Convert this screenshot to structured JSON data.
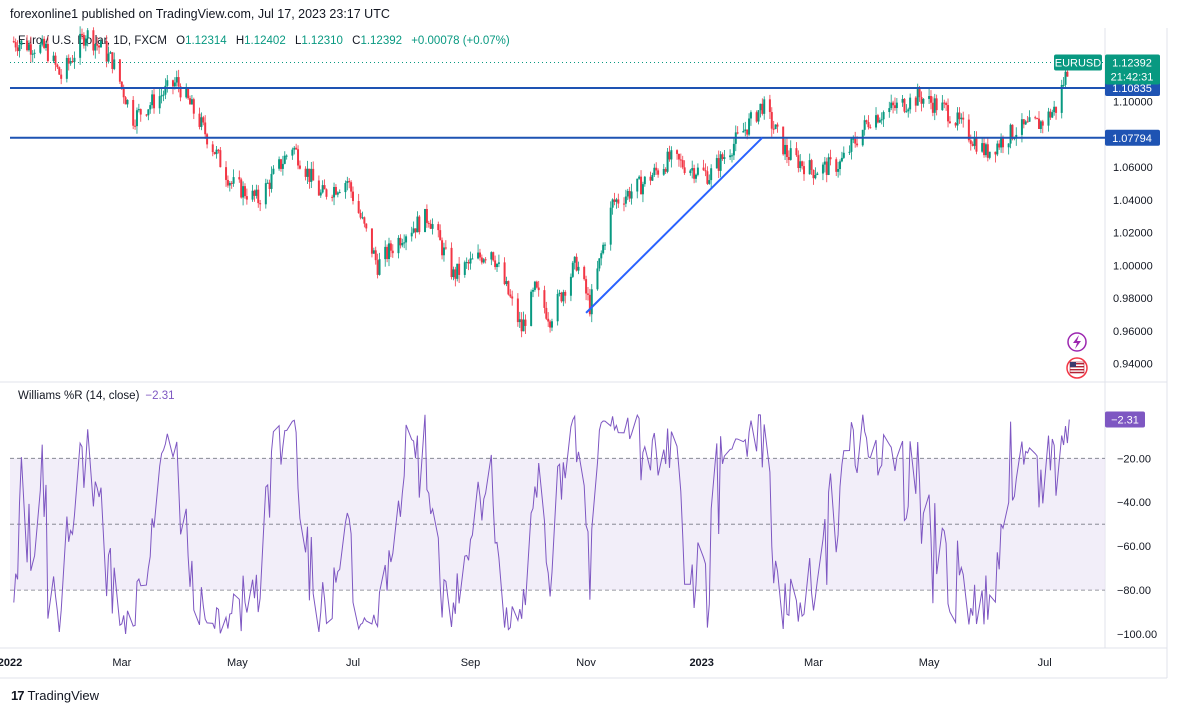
{
  "header": {
    "publisher": "forexonline1 published on TradingView.com, Jul 17, 2023 23:17 UTC"
  },
  "legend": {
    "symbol": "Euro / U.S. Dollar, 1D, FXCM",
    "o_label": "O",
    "o_value": "1.12314",
    "h_label": "H",
    "h_value": "1.12402",
    "l_label": "L",
    "l_value": "1.12310",
    "c_label": "C",
    "c_value": "1.12392",
    "change": "+0.00078 (+0.07%)"
  },
  "indicator": {
    "name": "Williams %R (14, close)",
    "value": "−2.31"
  },
  "footer": {
    "brand": "TradingView",
    "logo_text": "17"
  },
  "colors": {
    "up": "#089981",
    "down": "#f23645",
    "line": "#2962ff",
    "hline": "#1e53b3",
    "indicator": "#7e57c2",
    "band": "#ede7f6"
  },
  "icons": [
    "lightning-icon",
    "us-flag-icon"
  ],
  "chart_data": [
    {
      "type": "candlestick",
      "symbol": "EURUSD",
      "ylim": [
        0.93,
        1.145
      ],
      "y_ticks": [
        "0.94000",
        "0.96000",
        "0.98000",
        "1.00000",
        "1.02000",
        "1.04000",
        "1.06000",
        "1.10000"
      ],
      "x_labels": [
        "2022",
        "Mar",
        "May",
        "Jul",
        "Sep",
        "Nov",
        "2023",
        "Mar",
        "May",
        "Jul"
      ],
      "price_badge": {
        "label": "EURUSD",
        "value": "1.12392",
        "countdown": "21:42:31"
      },
      "horizontal_lines": [
        {
          "value": 1.10835,
          "label": "1.10835"
        },
        {
          "value": 1.07794,
          "label": "1.07794"
        }
      ],
      "trendline": {
        "from": {
          "date": "2022-11-01",
          "value": 0.971
        },
        "to": {
          "date": "2023-02-02",
          "value": 1.078
        }
      },
      "close_path": [
        {
          "date": "2022-01-01",
          "value": 1.137
        },
        {
          "date": "2022-01-20",
          "value": 1.132
        },
        {
          "date": "2022-01-28",
          "value": 1.115
        },
        {
          "date": "2022-02-10",
          "value": 1.142
        },
        {
          "date": "2022-02-24",
          "value": 1.125
        },
        {
          "date": "2022-03-07",
          "value": 1.09
        },
        {
          "date": "2022-03-30",
          "value": 1.112
        },
        {
          "date": "2022-04-10",
          "value": 1.09
        },
        {
          "date": "2022-04-28",
          "value": 1.05
        },
        {
          "date": "2022-05-12",
          "value": 1.04
        },
        {
          "date": "2022-05-30",
          "value": 1.073
        },
        {
          "date": "2022-06-14",
          "value": 1.043
        },
        {
          "date": "2022-06-28",
          "value": 1.052
        },
        {
          "date": "2022-07-14",
          "value": 1.0
        },
        {
          "date": "2022-07-28",
          "value": 1.02
        },
        {
          "date": "2022-08-10",
          "value": 1.03
        },
        {
          "date": "2022-08-23",
          "value": 0.994
        },
        {
          "date": "2022-09-12",
          "value": 1.01
        },
        {
          "date": "2022-09-28",
          "value": 0.961
        },
        {
          "date": "2022-10-05",
          "value": 0.985
        },
        {
          "date": "2022-10-13",
          "value": 0.968
        },
        {
          "date": "2022-10-27",
          "value": 1.002
        },
        {
          "date": "2022-11-03",
          "value": 0.975
        },
        {
          "date": "2022-11-15",
          "value": 1.038
        },
        {
          "date": "2022-12-01",
          "value": 1.05
        },
        {
          "date": "2022-12-15",
          "value": 1.065
        },
        {
          "date": "2023-01-05",
          "value": 1.055
        },
        {
          "date": "2023-01-27",
          "value": 1.088
        },
        {
          "date": "2023-02-02",
          "value": 1.098
        },
        {
          "date": "2023-02-15",
          "value": 1.068
        },
        {
          "date": "2023-03-01",
          "value": 1.058
        },
        {
          "date": "2023-03-15",
          "value": 1.062
        },
        {
          "date": "2023-03-31",
          "value": 1.09
        },
        {
          "date": "2023-04-26",
          "value": 1.103
        },
        {
          "date": "2023-05-10",
          "value": 1.095
        },
        {
          "date": "2023-05-31",
          "value": 1.069
        },
        {
          "date": "2023-06-15",
          "value": 1.082
        },
        {
          "date": "2023-06-29",
          "value": 1.087
        },
        {
          "date": "2023-07-07",
          "value": 1.096
        },
        {
          "date": "2023-07-14",
          "value": 1.1239
        }
      ]
    },
    {
      "type": "line",
      "name": "Williams %R (14, close)",
      "ylim": [
        -105,
        2
      ],
      "y_ticks": [
        "-20.00",
        "-40.00",
        "-60.00",
        "-80.00",
        "-100.00"
      ],
      "bands": {
        "upper": -20,
        "middle": -50,
        "lower": -80
      },
      "last_value": -2.31
    }
  ]
}
